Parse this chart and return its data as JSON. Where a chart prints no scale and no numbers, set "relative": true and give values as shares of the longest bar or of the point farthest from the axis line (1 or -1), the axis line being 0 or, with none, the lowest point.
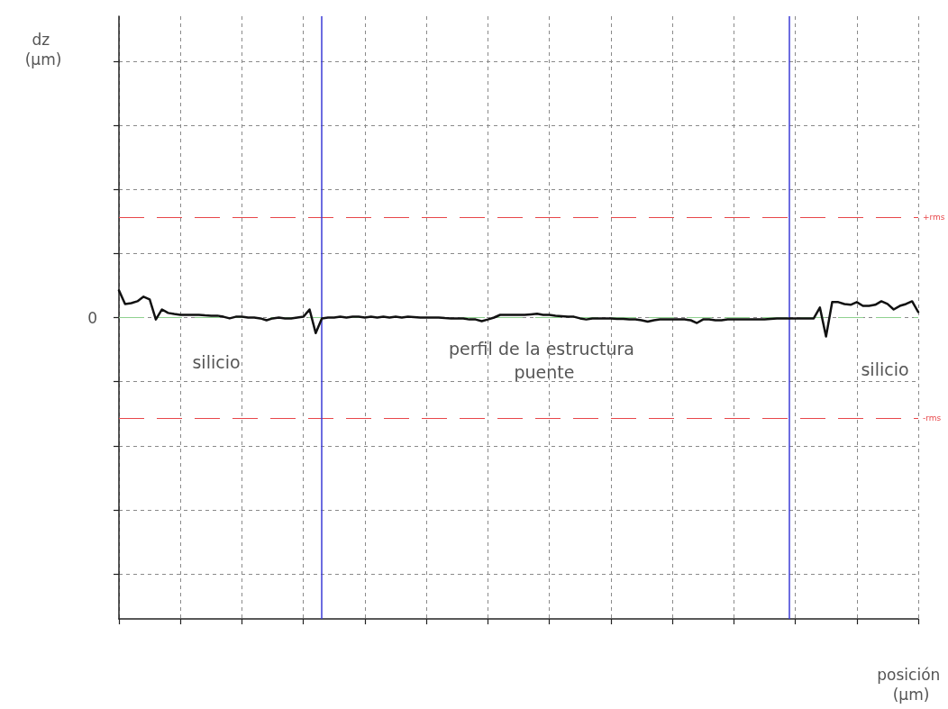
{
  "chart_data": {
    "type": "line",
    "relative": true,
    "annotations": [
      "dz (µm)",
      "silicio",
      "perfil de la estructura puente",
      "silicio",
      "posición (µm)"
    ],
    "categories": [
      null,
      null,
      null,
      null,
      null,
      null,
      null,
      null,
      null,
      null,
      null,
      null,
      null,
      null,
      null,
      null,
      null,
      null,
      null,
      null,
      null,
      null,
      null,
      null,
      null,
      null,
      null,
      null,
      null,
      null,
      null,
      null,
      null,
      null,
      null,
      null,
      null,
      null,
      null,
      null,
      null,
      null,
      null,
      null,
      null,
      null,
      null,
      null,
      null,
      null,
      null,
      null,
      null,
      null,
      null,
      null,
      null,
      null,
      null,
      null,
      null,
      null,
      null,
      null,
      null,
      null,
      null,
      null,
      null,
      null,
      null,
      null,
      null,
      null,
      null,
      null,
      null,
      null,
      null,
      null,
      null,
      null,
      null,
      null,
      null,
      null,
      null,
      null,
      null,
      null,
      null,
      null,
      null,
      null,
      null,
      null,
      null,
      null,
      null,
      null,
      null,
      null,
      null,
      null,
      null,
      null,
      null,
      null,
      null,
      null,
      null,
      null,
      null,
      null,
      null,
      null,
      null,
      null,
      null,
      null,
      null,
      null,
      null,
      null,
      null,
      null,
      null,
      null,
      null,
      null,
      null
    ],
    "color": "#111111",
    "values": [
      1.0,
      0.5,
      0.53,
      0.6,
      0.77,
      0.67,
      -0.07,
      0.3,
      0.17,
      0.13,
      0.1,
      0.1,
      0.1,
      0.1,
      0.08,
      0.07,
      0.07,
      0.03,
      -0.03,
      0.03,
      0.03,
      0.0,
      0.0,
      -0.03,
      -0.1,
      -0.03,
      0.0,
      -0.03,
      -0.03,
      0.0,
      0.03,
      0.3,
      -0.57,
      -0.03,
      0.0,
      0.0,
      0.03,
      0.0,
      0.03,
      0.03,
      0.0,
      0.03,
      0.0,
      0.03,
      0.0,
      0.03,
      0.0,
      0.03,
      0.02,
      0.0,
      0.0,
      0.0,
      0.0,
      -0.02,
      -0.03,
      -0.03,
      -0.03,
      -0.07,
      -0.07,
      -0.13,
      -0.07,
      0.0,
      0.1,
      0.1,
      0.1,
      0.1,
      0.1,
      0.12,
      0.14,
      0.1,
      0.1,
      0.07,
      0.05,
      0.03,
      0.03,
      -0.03,
      -0.07,
      -0.03,
      -0.03,
      -0.03,
      -0.03,
      -0.05,
      -0.05,
      -0.07,
      -0.07,
      -0.1,
      -0.15,
      -0.1,
      -0.07,
      -0.07,
      -0.07,
      -0.07,
      -0.07,
      -0.1,
      -0.2,
      -0.07,
      -0.07,
      -0.1,
      -0.1,
      -0.07,
      -0.07,
      -0.07,
      -0.07,
      -0.07,
      -0.07,
      -0.07,
      -0.05,
      -0.03,
      -0.03,
      -0.03,
      -0.03,
      -0.03,
      -0.03,
      -0.03,
      0.37,
      -0.7,
      0.57,
      0.57,
      0.5,
      0.47,
      0.57,
      0.43,
      0.43,
      0.47,
      0.6,
      0.5,
      0.3,
      0.43,
      0.5,
      0.6,
      0.2
    ],
    "ref_lines": [
      {
        "axis": "y",
        "value": 0,
        "label": "0",
        "color": "#8fd18f",
        "line_style": "dashed"
      },
      {
        "axis": "y",
        "value": 3.7,
        "label": "+rms",
        "color": "#e8474a",
        "line_style": "dashed"
      },
      {
        "axis": "y",
        "value": -3.7,
        "label": "-rms",
        "color": "#e8474a",
        "line_style": "dashed"
      }
    ],
    "grid": true,
    "line_style": "solid"
  }
}
